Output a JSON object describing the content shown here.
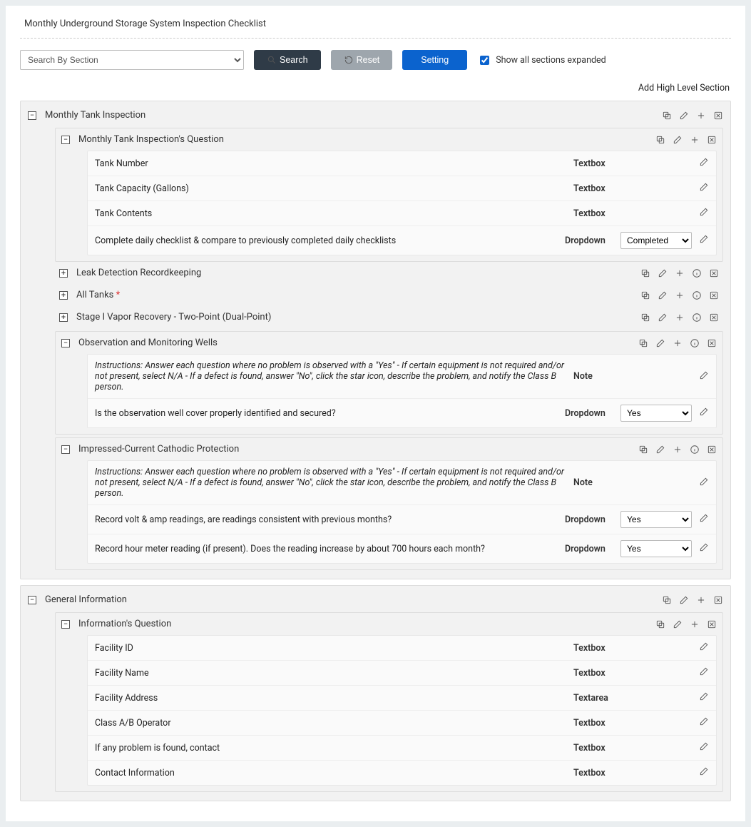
{
  "page": {
    "title": "Monthly Underground Storage System Inspection Checklist"
  },
  "toolbar": {
    "search_placeholder": "Search By Section",
    "search_label": "Search",
    "reset_label": "Reset",
    "setting_label": "Setting",
    "show_all_expanded_label": "Show all sections expanded",
    "add_high_level": "Add High Level Section"
  },
  "sections": [
    {
      "title": "Monthly Tank Inspection",
      "expanded": true,
      "subsections": [
        {
          "title": "Monthly Tank Inspection's Question",
          "expanded": true,
          "has_info": false,
          "rows": [
            {
              "label": "Tank Number",
              "type": "Textbox"
            },
            {
              "label": "Tank Capacity (Gallons)",
              "type": "Textbox"
            },
            {
              "label": "Tank Contents",
              "type": "Textbox"
            },
            {
              "label": "Complete daily checklist & compare to previously completed daily checklists",
              "type": "Dropdown",
              "selected": "Completed"
            }
          ]
        },
        {
          "title": "Leak Detection Recordkeeping",
          "expanded": false,
          "has_info": true
        },
        {
          "title": "All Tanks",
          "required": true,
          "expanded": false,
          "has_info": true
        },
        {
          "title": "Stage I Vapor Recovery - Two-Point (Dual-Point)",
          "expanded": false,
          "has_info": true
        },
        {
          "title": "Observation and Monitoring Wells",
          "expanded": true,
          "has_info": true,
          "rows": [
            {
              "label": "Instructions: Answer each question where no problem is observed with a \"Yes\" - If certain equipment is not required and/or not present, select N/A - If a defect is found, answer \"No\", click the star icon, describe the problem, and notify the Class B person.",
              "type": "Note",
              "is_note": true
            },
            {
              "label": "Is the observation well cover properly identified and secured?",
              "type": "Dropdown",
              "selected": "Yes"
            }
          ]
        },
        {
          "title": "Impressed-Current Cathodic Protection",
          "expanded": true,
          "has_info": true,
          "rows": [
            {
              "label": "Instructions: Answer each question where no problem is observed with a \"Yes\" - If certain equipment is not required and/or not present, select N/A - If a defect is found, answer \"No\", click the star icon, describe the problem, and notify the Class B person.",
              "type": "Note",
              "is_note": true
            },
            {
              "label": "Record volt & amp readings, are readings consistent with previous months?",
              "type": "Dropdown",
              "selected": "Yes"
            },
            {
              "label": "Record hour meter reading (if present). Does the reading increase by about 700 hours each month?",
              "type": "Dropdown",
              "selected": "Yes"
            }
          ]
        }
      ]
    },
    {
      "title": "General Information",
      "expanded": true,
      "top_actions_no_info": true,
      "subsections": [
        {
          "title": "Information's Question",
          "expanded": true,
          "has_info": false,
          "rows": [
            {
              "label": "Facility ID",
              "type": "Textbox"
            },
            {
              "label": "Facility Name",
              "type": "Textbox"
            },
            {
              "label": "Facility Address",
              "type": "Textarea"
            },
            {
              "label": "Class A/B Operator",
              "type": "Textbox"
            },
            {
              "label": "If any problem is found, contact",
              "type": "Textbox"
            },
            {
              "label": "Contact Information",
              "type": "Textbox"
            }
          ]
        }
      ]
    }
  ]
}
